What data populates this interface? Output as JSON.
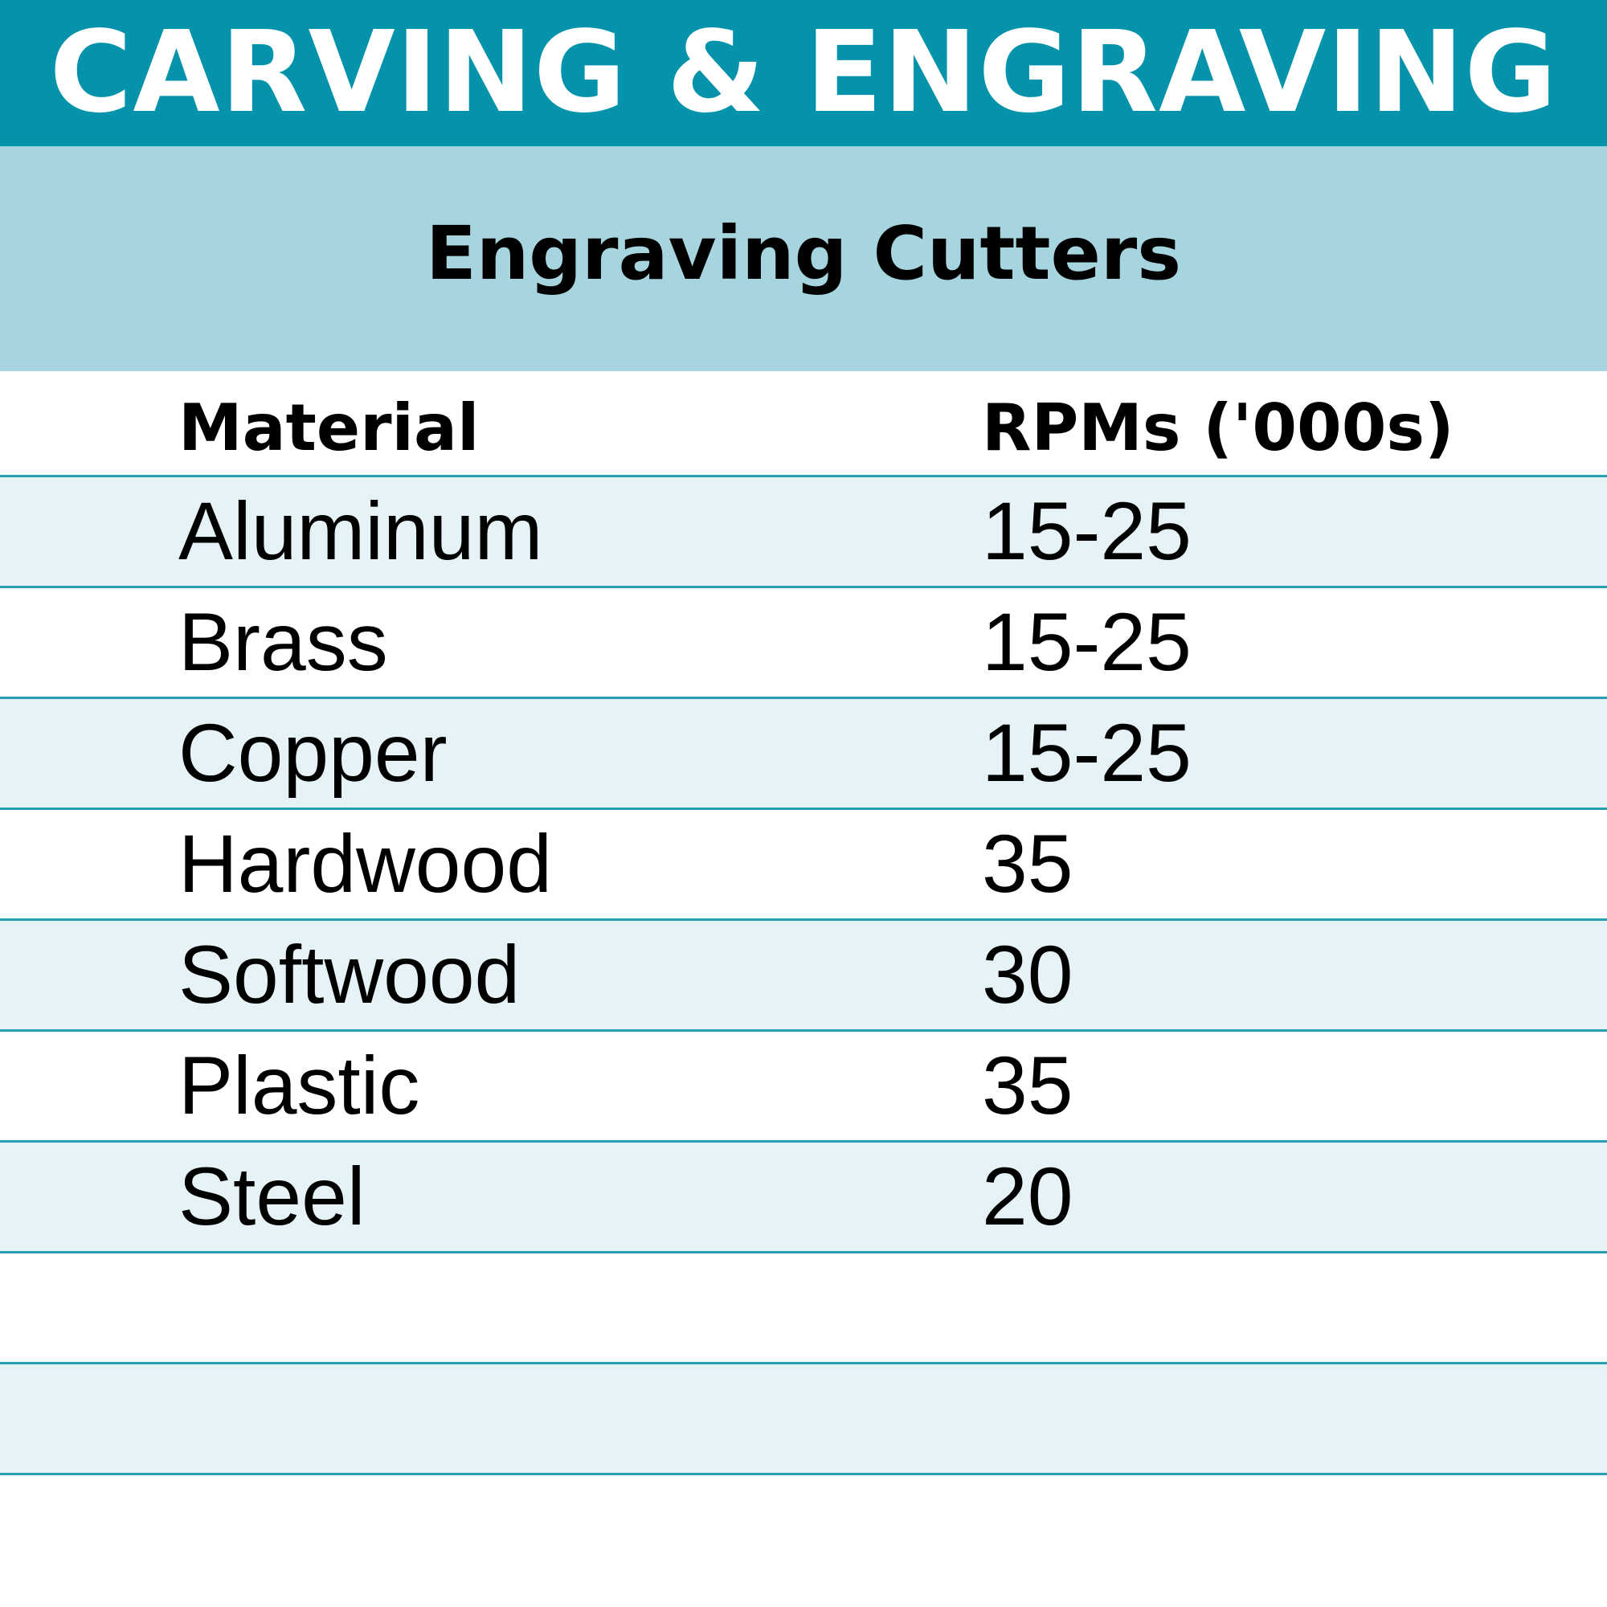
{
  "banner": {
    "title": "CARVING & ENGRAVING"
  },
  "subheader": {
    "title": "Engraving Cutters"
  },
  "table": {
    "columns": [
      "Material",
      "RPMs ('000s)"
    ],
    "rows": [
      [
        "Aluminum",
        "15-25"
      ],
      [
        "Brass",
        "15-25"
      ],
      [
        "Copper",
        "15-25"
      ],
      [
        "Hardwood",
        "35"
      ],
      [
        "Softwood",
        "30"
      ],
      [
        "Plastic",
        "35"
      ],
      [
        "Steel",
        "20"
      ],
      [
        "",
        ""
      ],
      [
        "",
        ""
      ]
    ]
  },
  "colors": {
    "banner_background": "#0593ab",
    "subheader_background": "#a6d4df",
    "row_alt_background": "#e6f3f6",
    "row_divider": "#2a9fb3",
    "banner_text": "#ffffff"
  }
}
